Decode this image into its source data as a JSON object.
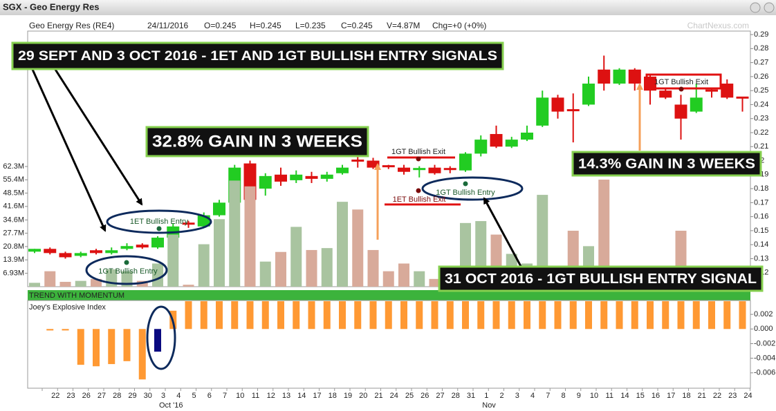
{
  "header": {
    "title": "SGX - Geo Energy Res",
    "items": [
      "Geo Energy Res (RE4)",
      "24/11/2016",
      "O=0.245",
      "H=0.245",
      "L=0.235",
      "C=0.245",
      "V=4.87M",
      "Chg=+0 (+0%)"
    ],
    "watermark": "ChartNexus.com"
  },
  "panel_labels": [
    "TREND WITH MOMENTUM",
    "Joey's Explosive Index"
  ],
  "annotations": {
    "headlines": [
      "29 SEPT AND 3 OCT 2016 - 1ET AND 1GT BULLISH ENTRY SIGNALS",
      "32.8% GAIN IN 3 WEEKS",
      "14.3% GAIN IN 3 WEEKS",
      "31 OCT 2016 - 1GT BULLISH ENTRY SIGNAL"
    ],
    "signals": [
      "1ET Bullish Entry",
      "1GT Bullish Entry",
      "1GT Bullish Exit",
      "1ET Bullish Exit",
      "1GT Bullish Entry",
      "1GT Bullish Exit"
    ]
  },
  "chart_data": [
    {
      "type": "candlestick",
      "categories": [
        null,
        "22",
        "23",
        "26",
        "27",
        "28",
        "29",
        "30",
        "3",
        "4",
        "5",
        "6",
        "7",
        "10",
        "11",
        "12",
        "13",
        "14",
        "17",
        "18",
        "19",
        "20",
        "21",
        "24",
        "25",
        "26",
        "27",
        "28",
        "31",
        "1",
        "2",
        "3",
        "4",
        "7",
        "8",
        "9",
        "10",
        "11",
        "14",
        "15",
        "16",
        "17",
        "18",
        "21",
        "22",
        "23",
        "24"
      ],
      "month_labels": [
        null,
        null,
        null,
        null,
        null,
        null,
        null,
        null,
        "Oct '16",
        null,
        null,
        null,
        null,
        null,
        null,
        null,
        null,
        null,
        null,
        null,
        null,
        null,
        null,
        null,
        null,
        null,
        null,
        null,
        null,
        "Nov",
        null,
        null,
        null,
        null,
        null,
        null,
        null,
        null,
        null,
        null,
        null,
        null,
        null,
        null,
        null,
        null,
        null
      ],
      "open": [
        0.135,
        0.137,
        0.134,
        0.132,
        0.136,
        0.134,
        0.137,
        0.14,
        0.138,
        0.145,
        0.155,
        0.153,
        0.161,
        0.17,
        0.198,
        0.18,
        0.19,
        0.186,
        0.189,
        0.187,
        0.191,
        0.2,
        0.2,
        0.196,
        0.195,
        0.193,
        0.195,
        0.194,
        0.193,
        0.205,
        0.219,
        0.21,
        0.215,
        0.225,
        0.245,
        0.236,
        0.24,
        0.265,
        0.255,
        0.265,
        0.26,
        0.25,
        0.24,
        0.235,
        0.25,
        0.255,
        0.245
      ],
      "high": [
        0.137,
        0.138,
        0.135,
        0.135,
        0.137,
        0.138,
        0.141,
        0.141,
        0.146,
        0.155,
        0.157,
        0.163,
        0.172,
        0.197,
        0.2,
        0.191,
        0.195,
        0.193,
        0.192,
        0.192,
        0.197,
        0.203,
        0.202,
        0.197,
        0.197,
        0.196,
        0.197,
        0.196,
        0.206,
        0.218,
        0.225,
        0.217,
        0.225,
        0.25,
        0.247,
        0.248,
        0.26,
        0.275,
        0.266,
        0.266,
        0.262,
        0.252,
        0.247,
        0.255,
        0.252,
        0.258,
        0.245
      ],
      "low": [
        0.134,
        0.133,
        0.13,
        0.131,
        0.133,
        0.133,
        0.136,
        0.137,
        0.137,
        0.144,
        0.152,
        0.152,
        0.16,
        0.17,
        0.171,
        0.175,
        0.182,
        0.184,
        0.184,
        0.185,
        0.19,
        0.195,
        0.194,
        0.194,
        0.19,
        0.188,
        0.19,
        0.191,
        0.192,
        0.203,
        0.209,
        0.209,
        0.214,
        0.224,
        0.23,
        0.213,
        0.239,
        0.25,
        0.254,
        0.25,
        0.24,
        0.244,
        0.215,
        0.234,
        0.245,
        0.244,
        0.235
      ],
      "close": [
        0.137,
        0.134,
        0.131,
        0.134,
        0.134,
        0.136,
        0.139,
        0.138,
        0.145,
        0.153,
        0.154,
        0.161,
        0.17,
        0.195,
        0.172,
        0.189,
        0.185,
        0.19,
        0.187,
        0.19,
        0.195,
        0.199,
        0.195,
        0.195,
        0.192,
        0.194,
        0.191,
        0.193,
        0.205,
        0.215,
        0.21,
        0.215,
        0.22,
        0.245,
        0.235,
        0.235,
        0.255,
        0.255,
        0.265,
        0.255,
        0.25,
        0.245,
        0.23,
        0.245,
        0.249,
        0.245,
        0.245
      ],
      "up_color": "#22cc22",
      "down_color": "#dd1111",
      "ylim": [
        0.11,
        0.2925
      ],
      "yticks": [
        0.12,
        0.13,
        0.14,
        0.15,
        0.16,
        0.17,
        0.18,
        0.19,
        0.2,
        0.21,
        0.22,
        0.23,
        0.24,
        0.25,
        0.26,
        0.27,
        0.28,
        0.29
      ]
    },
    {
      "type": "bar",
      "values": [
        2,
        8,
        2.5,
        3,
        4,
        9,
        8,
        3,
        12,
        27,
        1,
        22,
        35,
        55,
        52,
        13,
        18,
        31,
        19,
        20,
        44,
        40,
        19,
        8,
        12,
        8,
        4,
        10,
        33,
        34,
        27,
        17,
        12,
        47.6,
        10,
        29,
        21,
        55.5,
        2,
        3,
        2,
        1,
        29,
        2,
        1,
        1,
        4.87
      ],
      "up_color": "#a9c4a0",
      "down_color": "#d8aa9a",
      "ylim": [
        0,
        132.5
      ],
      "yticks": [
        {
          "value": 6.93,
          "label": "6.93M"
        },
        {
          "value": 13.9,
          "label": "13.9M"
        },
        {
          "value": 20.8,
          "label": "20.8M"
        },
        {
          "value": 27.7,
          "label": "27.7M"
        },
        {
          "value": 34.6,
          "label": "34.6M"
        },
        {
          "value": 41.6,
          "label": "41.6M"
        },
        {
          "value": 48.5,
          "label": "48.5M"
        },
        {
          "value": 55.4,
          "label": "55.4M"
        },
        {
          "value": 62.3,
          "label": "62.3M"
        }
      ]
    },
    {
      "type": "bar",
      "values": [
        0,
        -0.0002,
        -0.0002,
        -0.0049,
        -0.0051,
        -0.0048,
        -0.0044,
        -0.0069,
        -0.0031,
        0.0025,
        0.0038,
        0.0038,
        0.0038,
        0.0038,
        0.0038,
        0.0038,
        0.0038,
        0.0038,
        0.0038,
        0.0038,
        0.0038,
        0.0038,
        0.0038,
        0.0038,
        0.0038,
        0.0038,
        0.0038,
        0.0038,
        0.0038,
        0.0038,
        0.0038,
        0.0038,
        0.0038,
        0.0038,
        0.0038,
        0.0038,
        0.0038,
        0.0038,
        0.0038,
        0.0038,
        0.0038,
        0.0038,
        0.0038,
        0.0038,
        0.0038,
        0.0038,
        0.0038
      ],
      "colors": [
        "#ff9933",
        "#ff9933",
        "#ff9933",
        "#ff9933",
        "#ff9933",
        "#ff9933",
        "#ff9933",
        "#ff9933",
        "#0a0a80",
        "#ff9933",
        "#ff9933",
        "#ff9933",
        "#ff9933",
        "#ff9933",
        "#ff9933",
        "#ff9933",
        "#ff9933",
        "#ff9933",
        "#ff9933",
        "#ff9933",
        "#ff9933",
        "#ff9933",
        "#ff9933",
        "#ff9933",
        "#ff9933",
        "#ff9933",
        "#ff9933",
        "#ff9933",
        "#ff9933",
        "#ff9933",
        "#ff9933",
        "#ff9933",
        "#ff9933",
        "#ff9933",
        "#ff9933",
        "#ff9933",
        "#ff9933",
        "#ff9933",
        "#ff9933",
        "#ff9933",
        "#ff9933",
        "#ff9933",
        "#ff9933",
        "#ff9933",
        "#ff9933",
        "#ff9933",
        "#ff9933"
      ],
      "ylim": [
        -0.0081,
        0.0039
      ],
      "yticks": [
        0.002,
        {
          "value": 0,
          "label": "0.000"
        },
        -0.002,
        -0.004,
        -0.006
      ]
    }
  ]
}
